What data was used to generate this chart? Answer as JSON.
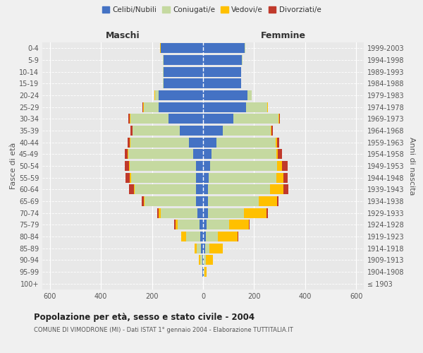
{
  "age_groups": [
    "100+",
    "95-99",
    "90-94",
    "85-89",
    "80-84",
    "75-79",
    "70-74",
    "65-69",
    "60-64",
    "55-59",
    "50-54",
    "45-49",
    "40-44",
    "35-39",
    "30-34",
    "25-29",
    "20-24",
    "15-19",
    "10-14",
    "5-9",
    "0-4"
  ],
  "birth_years": [
    "≤ 1903",
    "1904-1908",
    "1909-1913",
    "1914-1918",
    "1919-1923",
    "1924-1928",
    "1929-1933",
    "1934-1938",
    "1939-1943",
    "1944-1948",
    "1949-1953",
    "1954-1958",
    "1959-1963",
    "1964-1968",
    "1969-1973",
    "1974-1978",
    "1979-1983",
    "1984-1988",
    "1989-1993",
    "1994-1998",
    "1999-2003"
  ],
  "maschi": {
    "celibi": [
      0,
      2,
      4,
      7,
      12,
      15,
      22,
      28,
      28,
      28,
      28,
      38,
      55,
      90,
      135,
      175,
      175,
      155,
      155,
      155,
      165
    ],
    "coniugati": [
      0,
      2,
      8,
      18,
      55,
      85,
      145,
      200,
      240,
      255,
      260,
      255,
      230,
      185,
      150,
      58,
      14,
      2,
      2,
      2,
      2
    ],
    "vedovi": [
      0,
      0,
      4,
      8,
      18,
      8,
      6,
      4,
      4,
      4,
      2,
      2,
      1,
      1,
      2,
      2,
      2,
      1,
      1,
      1,
      1
    ],
    "divorziati": [
      0,
      0,
      0,
      0,
      0,
      4,
      7,
      8,
      18,
      16,
      16,
      13,
      9,
      8,
      6,
      2,
      0,
      0,
      0,
      0,
      0
    ]
  },
  "femmine": {
    "nubili": [
      0,
      2,
      4,
      7,
      10,
      13,
      18,
      20,
      20,
      23,
      28,
      33,
      52,
      78,
      118,
      168,
      173,
      148,
      148,
      153,
      163
    ],
    "coniugate": [
      0,
      3,
      8,
      18,
      48,
      88,
      143,
      198,
      243,
      263,
      263,
      253,
      233,
      188,
      178,
      83,
      18,
      2,
      2,
      2,
      2
    ],
    "vedove": [
      0,
      8,
      28,
      52,
      78,
      78,
      88,
      73,
      53,
      28,
      18,
      8,
      4,
      2,
      2,
      2,
      0,
      0,
      0,
      0,
      0
    ],
    "divorziate": [
      0,
      0,
      0,
      0,
      2,
      4,
      4,
      6,
      18,
      18,
      23,
      16,
      10,
      6,
      4,
      2,
      0,
      0,
      0,
      0,
      0
    ]
  },
  "colors": {
    "celibi": "#4472c4",
    "coniugati": "#c5d9a0",
    "vedovi": "#ffc000",
    "divorziati": "#c0392b"
  },
  "xlim": 630,
  "title": "Popolazione per età, sesso e stato civile - 2004",
  "subtitle": "COMUNE DI VIMODRONE (MI) - Dati ISTAT 1° gennaio 2004 - Elaborazione TUTTITALIA.IT",
  "ylabel_left": "Fasce di età",
  "ylabel_right": "Anni di nascita",
  "xlabel_left": "Maschi",
  "xlabel_right": "Femmine",
  "legend_labels": [
    "Celibi/Nubili",
    "Coniugati/e",
    "Vedovi/e",
    "Divorziati/e"
  ],
  "background_color": "#f0f0f0",
  "plot_bg": "#e8e8e8"
}
